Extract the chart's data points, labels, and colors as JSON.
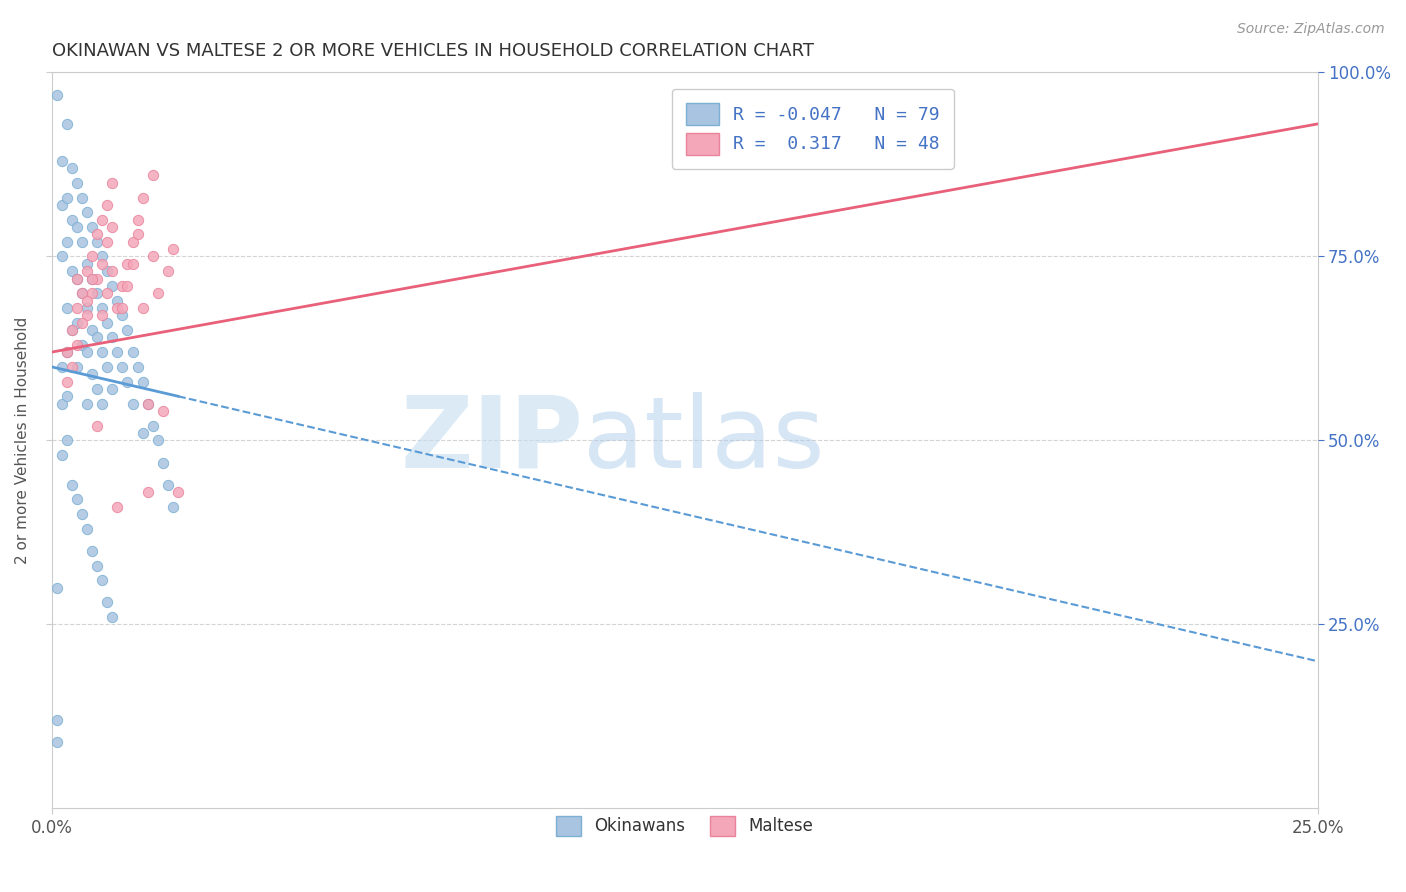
{
  "title": "OKINAWAN VS MALTESE 2 OR MORE VEHICLES IN HOUSEHOLD CORRELATION CHART",
  "source_text": "Source: ZipAtlas.com",
  "ylabel": "2 or more Vehicles in Household",
  "xlim": [
    0.0,
    0.25
  ],
  "ylim": [
    0.0,
    1.0
  ],
  "okinawan_color": "#a8c4e0",
  "okinawan_edge_color": "#7bafd4",
  "maltese_color": "#f4a7b9",
  "maltese_edge_color": "#e8839a",
  "okinawan_line_color": "#5b9bd5",
  "maltese_line_color": "#e8607a",
  "R_okinawan": -0.047,
  "N_okinawan": 79,
  "R_maltese": 0.317,
  "N_maltese": 48,
  "legend_label_1": "Okinawans",
  "legend_label_2": "Maltese",
  "watermark_zip": "ZIP",
  "watermark_atlas": "atlas",
  "background_color": "#ffffff",
  "grid_color": "#d0d0d0",
  "title_color": "#333333",
  "title_fontsize": 13,
  "okinawan_x": [
    0.001,
    0.001,
    0.001,
    0.002,
    0.002,
    0.002,
    0.002,
    0.003,
    0.003,
    0.003,
    0.003,
    0.003,
    0.004,
    0.004,
    0.004,
    0.004,
    0.005,
    0.005,
    0.005,
    0.005,
    0.005,
    0.006,
    0.006,
    0.006,
    0.006,
    0.007,
    0.007,
    0.007,
    0.007,
    0.007,
    0.008,
    0.008,
    0.008,
    0.008,
    0.009,
    0.009,
    0.009,
    0.009,
    0.01,
    0.01,
    0.01,
    0.01,
    0.011,
    0.011,
    0.011,
    0.012,
    0.012,
    0.012,
    0.013,
    0.013,
    0.014,
    0.014,
    0.015,
    0.015,
    0.016,
    0.016,
    0.017,
    0.018,
    0.018,
    0.019,
    0.02,
    0.021,
    0.022,
    0.023,
    0.024,
    0.001,
    0.002,
    0.002,
    0.003,
    0.003,
    0.004,
    0.005,
    0.006,
    0.007,
    0.008,
    0.009,
    0.01,
    0.011,
    0.012
  ],
  "okinawan_y": [
    0.97,
    0.12,
    0.09,
    0.88,
    0.82,
    0.75,
    0.6,
    0.93,
    0.83,
    0.77,
    0.68,
    0.62,
    0.87,
    0.8,
    0.73,
    0.65,
    0.85,
    0.79,
    0.72,
    0.66,
    0.6,
    0.83,
    0.77,
    0.7,
    0.63,
    0.81,
    0.74,
    0.68,
    0.62,
    0.55,
    0.79,
    0.72,
    0.65,
    0.59,
    0.77,
    0.7,
    0.64,
    0.57,
    0.75,
    0.68,
    0.62,
    0.55,
    0.73,
    0.66,
    0.6,
    0.71,
    0.64,
    0.57,
    0.69,
    0.62,
    0.67,
    0.6,
    0.65,
    0.58,
    0.62,
    0.55,
    0.6,
    0.58,
    0.51,
    0.55,
    0.52,
    0.5,
    0.47,
    0.44,
    0.41,
    0.3,
    0.55,
    0.48,
    0.56,
    0.5,
    0.44,
    0.42,
    0.4,
    0.38,
    0.35,
    0.33,
    0.31,
    0.28,
    0.26
  ],
  "maltese_x": [
    0.003,
    0.004,
    0.005,
    0.005,
    0.006,
    0.007,
    0.007,
    0.008,
    0.008,
    0.009,
    0.009,
    0.01,
    0.01,
    0.011,
    0.011,
    0.012,
    0.012,
    0.013,
    0.014,
    0.015,
    0.016,
    0.017,
    0.018,
    0.019,
    0.02,
    0.021,
    0.022,
    0.023,
    0.024,
    0.025,
    0.003,
    0.004,
    0.005,
    0.006,
    0.007,
    0.008,
    0.009,
    0.01,
    0.011,
    0.012,
    0.013,
    0.014,
    0.015,
    0.016,
    0.017,
    0.018,
    0.019,
    0.02
  ],
  "maltese_y": [
    0.62,
    0.65,
    0.68,
    0.72,
    0.7,
    0.73,
    0.67,
    0.75,
    0.7,
    0.78,
    0.72,
    0.8,
    0.74,
    0.77,
    0.82,
    0.79,
    0.85,
    0.68,
    0.71,
    0.74,
    0.77,
    0.8,
    0.83,
    0.43,
    0.86,
    0.7,
    0.54,
    0.73,
    0.76,
    0.43,
    0.58,
    0.6,
    0.63,
    0.66,
    0.69,
    0.72,
    0.52,
    0.67,
    0.7,
    0.73,
    0.41,
    0.68,
    0.71,
    0.74,
    0.78,
    0.68,
    0.55,
    0.75
  ],
  "okin_line_x0": 0.0,
  "okin_line_y0": 0.6,
  "okin_line_xsolid": 0.025,
  "okin_line_ysolid": 0.56,
  "okin_line_x1": 0.25,
  "okin_line_y1": 0.2,
  "malt_line_x0": 0.0,
  "malt_line_y0": 0.62,
  "malt_line_x1": 0.25,
  "malt_line_y1": 0.93
}
